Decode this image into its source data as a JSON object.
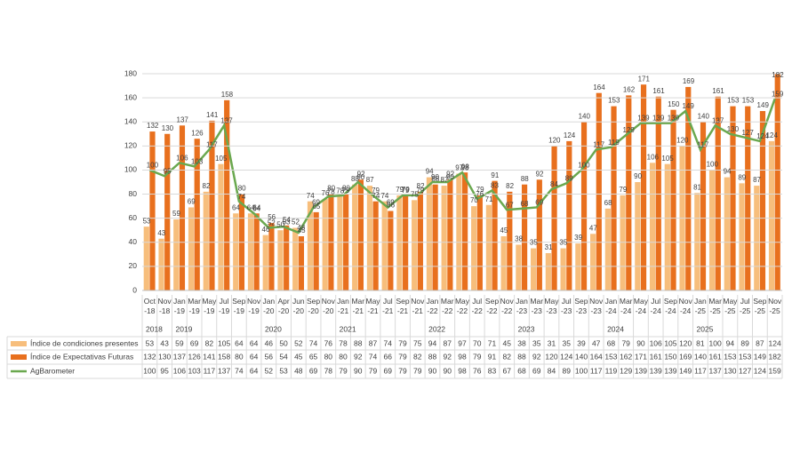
{
  "chart_data": {
    "type": "bar-line",
    "categories": [
      "Oct-18",
      "Nov-18",
      "Jan-19",
      "Mar-19",
      "May-19",
      "Jul-19",
      "Sep-19",
      "Nov-19",
      "Jan-20",
      "Apr-20",
      "Jun-20",
      "Sep-20",
      "Nov-20",
      "Jan-21",
      "Mar-21",
      "May-21",
      "Jul-21",
      "Sep-21",
      "Nov-21",
      "Jan-22",
      "Mar-22",
      "May-22",
      "Jul-22",
      "Sep-22",
      "Nov-22",
      "Jan-23",
      "Mar-23",
      "May-23",
      "Jul-23",
      "Sep-23",
      "Nov-23",
      "Jan-24",
      "Mar-24",
      "May-24",
      "Jul-24",
      "Sep-24",
      "Nov-24",
      "Jan-25",
      "Mar-25",
      "May-25",
      "Jul-25",
      "Sep-25",
      "Nov-25"
    ],
    "years": [
      "2018",
      "2019",
      "2020",
      "2021",
      "2022",
      "2023",
      "2024",
      "2025"
    ],
    "series": [
      {
        "name": "Índice de condiciones presentes",
        "color": "#f7be7c",
        "kind": "bar",
        "values": [
          53,
          43,
          59,
          69,
          82,
          105,
          64,
          64,
          46,
          50,
          52,
          74,
          76,
          78,
          88,
          87,
          74,
          79,
          75,
          94,
          87,
          97,
          70,
          71,
          45,
          38,
          35,
          31,
          35,
          39,
          47,
          68,
          79,
          90,
          106,
          105,
          120,
          81,
          100,
          94,
          89,
          87,
          124
        ]
      },
      {
        "name": "Índice de Expectativas Futuras",
        "color": "#e8701e",
        "kind": "bar",
        "values": [
          132,
          130,
          137,
          126,
          141,
          158,
          80,
          64,
          56,
          54,
          45,
          65,
          80,
          80,
          92,
          74,
          66,
          79,
          82,
          88,
          92,
          98,
          79,
          91,
          82,
          88,
          92,
          120,
          124,
          140,
          164,
          153,
          162,
          171,
          161,
          150,
          169,
          140,
          161,
          153,
          153,
          149,
          182
        ]
      },
      {
        "name": "AgBarometer",
        "color": "#6aa84f",
        "kind": "line",
        "values": [
          100,
          95,
          106,
          103,
          117,
          137,
          74,
          64,
          52,
          53,
          48,
          69,
          78,
          79,
          90,
          79,
          69,
          79,
          79,
          90,
          90,
          98,
          76,
          83,
          67,
          68,
          69,
          84,
          89,
          100,
          117,
          119,
          129,
          139,
          139,
          139,
          149,
          117,
          137,
          130,
          127,
          124,
          159
        ]
      }
    ],
    "ylim": [
      0,
      180
    ],
    "yticks": [
      0,
      20,
      40,
      60,
      80,
      100,
      120,
      140,
      160,
      180
    ],
    "grid": true
  }
}
